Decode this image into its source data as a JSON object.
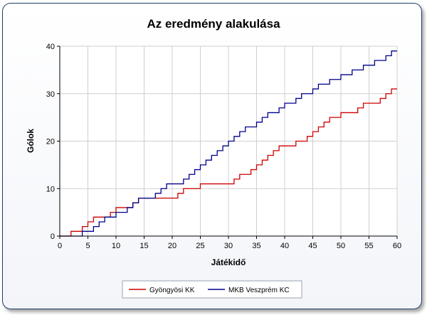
{
  "chart_data": {
    "type": "line",
    "title": "Az eredmény alakulása",
    "xlabel": "Játékidő",
    "ylabel": "Gólok",
    "xlim": [
      0,
      60
    ],
    "ylim": [
      0,
      40
    ],
    "xticks": [
      0,
      5,
      10,
      15,
      20,
      25,
      30,
      35,
      40,
      45,
      50,
      55,
      60
    ],
    "yticks": [
      0,
      10,
      20,
      30,
      40
    ],
    "grid": true,
    "legend_position": "bottom",
    "step": true,
    "series": [
      {
        "name": "Gyöngyösi KK",
        "color": "#cc0000",
        "x": [
          0,
          2,
          4,
          5,
          6,
          9,
          10,
          13,
          14,
          21,
          22,
          25,
          31,
          32,
          34,
          35,
          36,
          37,
          38,
          39,
          42,
          44,
          45,
          46,
          47,
          48,
          50,
          53,
          54,
          57,
          58,
          59,
          60
        ],
        "y": [
          0,
          1,
          2,
          3,
          4,
          5,
          6,
          7,
          8,
          9,
          10,
          11,
          12,
          13,
          14,
          15,
          16,
          17,
          18,
          19,
          20,
          21,
          22,
          23,
          24,
          25,
          26,
          27,
          28,
          29,
          30,
          31,
          31
        ]
      },
      {
        "name": "MKB Veszprém KC",
        "color": "#00008b",
        "x": [
          0,
          4,
          6,
          7,
          8,
          10,
          12,
          13,
          14,
          17,
          18,
          19,
          22,
          23,
          24,
          25,
          26,
          27,
          28,
          29,
          30,
          31,
          32,
          33,
          35,
          36,
          37,
          39,
          40,
          42,
          43,
          45,
          46,
          48,
          50,
          52,
          54,
          56,
          58,
          59,
          60
        ],
        "y": [
          0,
          1,
          2,
          3,
          4,
          5,
          6,
          7,
          8,
          9,
          10,
          11,
          12,
          13,
          14,
          15,
          16,
          17,
          18,
          19,
          20,
          21,
          22,
          23,
          24,
          25,
          26,
          27,
          28,
          29,
          30,
          31,
          32,
          33,
          34,
          35,
          36,
          37,
          38,
          39,
          39
        ]
      }
    ]
  }
}
